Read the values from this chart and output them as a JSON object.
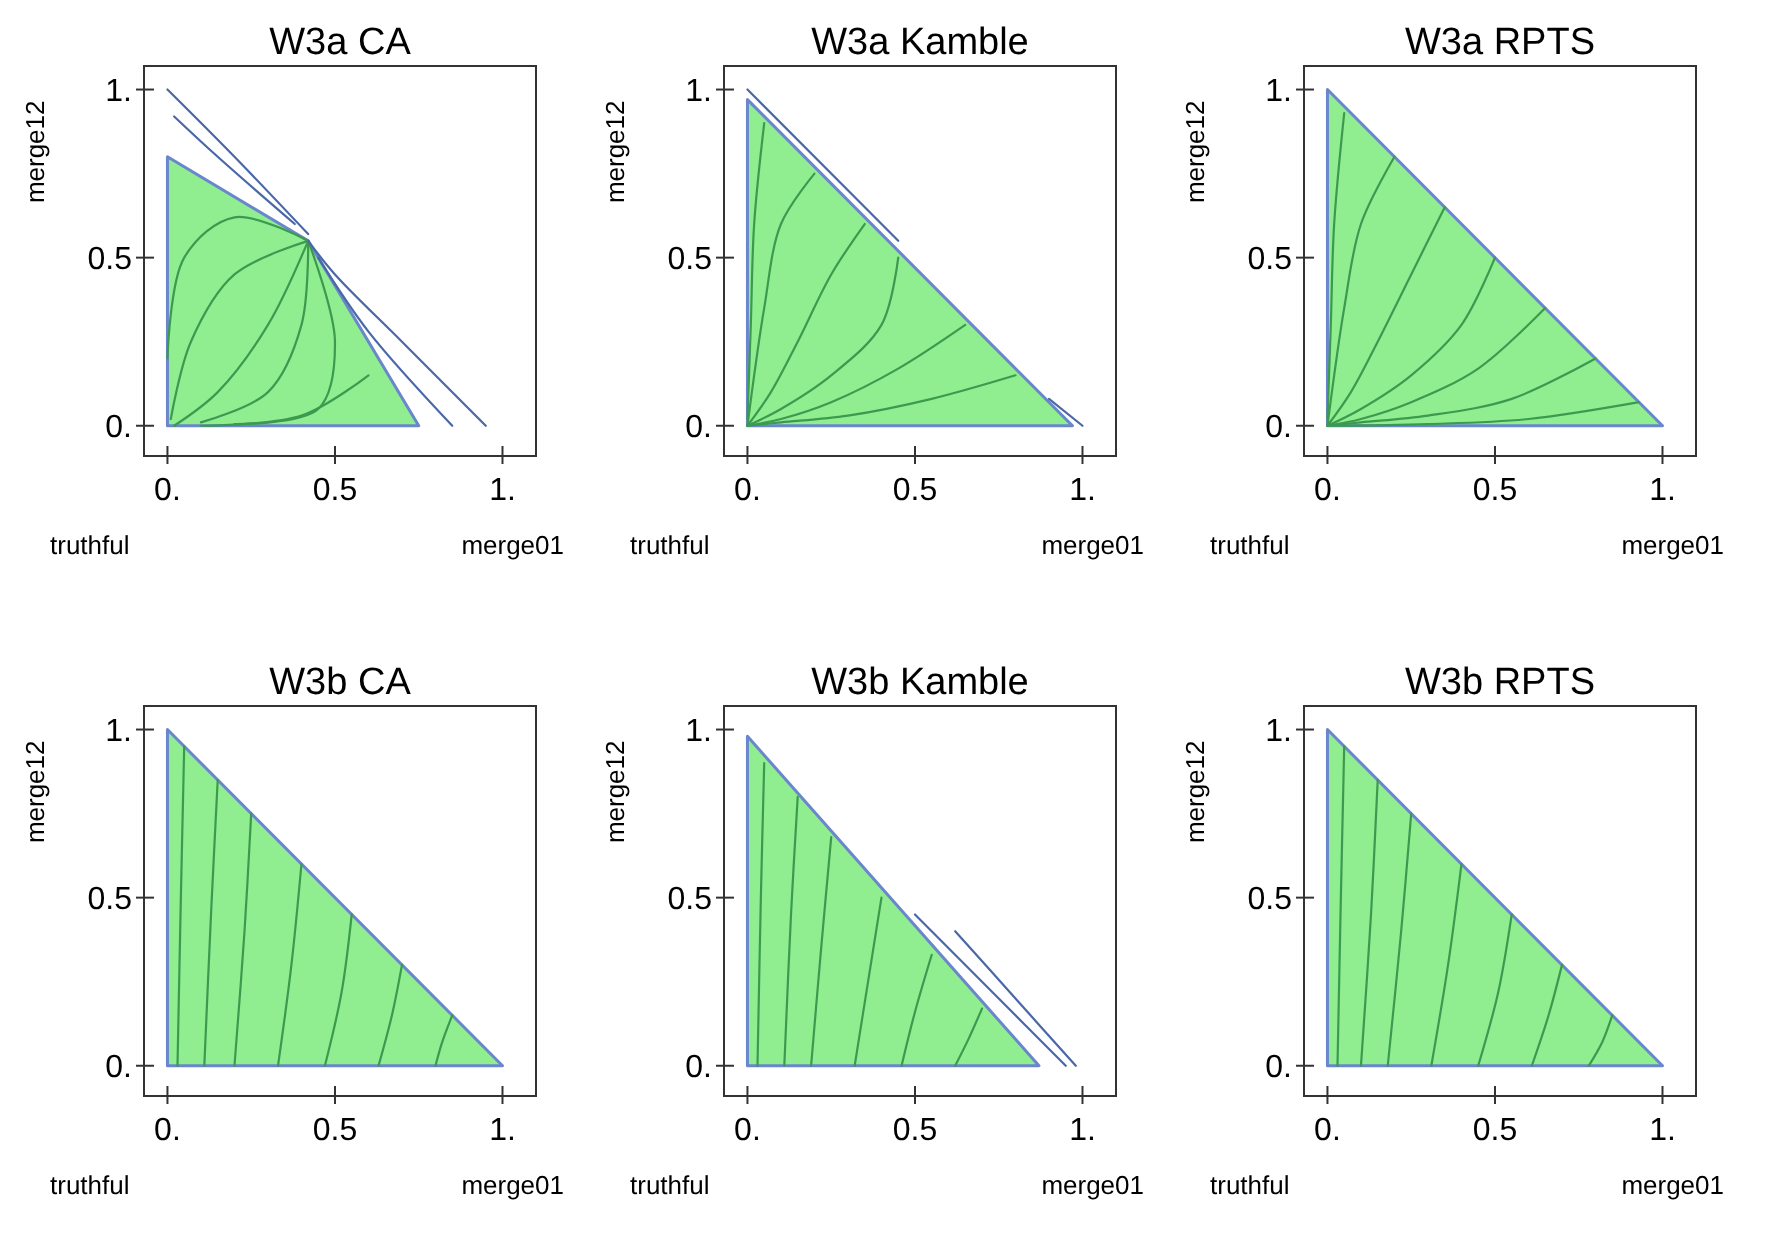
{
  "chart_data": [
    {
      "type": "area",
      "title": "W3a CA",
      "xlabel": "merge01",
      "ylabel": "merge12",
      "annotations": [
        "truthful"
      ],
      "xlim": [
        -0.07,
        1.1
      ],
      "ylim": [
        -0.09,
        1.07
      ],
      "xticks": [
        {
          "value": 0,
          "label": "0."
        },
        {
          "value": 0.5,
          "label": "0.5"
        },
        {
          "value": 1,
          "label": "1."
        }
      ],
      "yticks": [
        {
          "value": 0,
          "label": "0."
        },
        {
          "value": 0.5,
          "label": "0.5"
        },
        {
          "value": 1,
          "label": "1."
        }
      ],
      "series": [
        {
          "type": "area",
          "color": "#90ee90",
          "x": [
            0,
            0.42,
            0.75
          ],
          "values": [
            0.8,
            0.55,
            0
          ]
        },
        {
          "type": "line",
          "color": "#3c9a50",
          "x": [
            0.42,
            0.2,
            0.05,
            0
          ],
          "values": [
            0.55,
            0.62,
            0.5,
            0.2
          ]
        },
        {
          "type": "line",
          "color": "#3c9a50",
          "x": [
            0.42,
            0.2,
            0.07,
            0.01
          ],
          "values": [
            0.55,
            0.45,
            0.25,
            0.02
          ]
        },
        {
          "type": "line",
          "color": "#3c9a50",
          "x": [
            0.42,
            0.3,
            0.15,
            0.02
          ],
          "values": [
            0.55,
            0.3,
            0.1,
            0
          ]
        },
        {
          "type": "line",
          "color": "#3c9a50",
          "x": [
            0.42,
            0.4,
            0.3,
            0.1
          ],
          "values": [
            0.55,
            0.3,
            0.1,
            0.01
          ]
        },
        {
          "type": "line",
          "color": "#3c9a50",
          "x": [
            0.42,
            0.5,
            0.45,
            0.2
          ],
          "values": [
            0.55,
            0.25,
            0.05,
            0.005
          ]
        },
        {
          "type": "line",
          "color": "#3c9a50",
          "x": [
            0.6,
            0.4,
            0.1
          ],
          "values": [
            0.15,
            0.03,
            0
          ]
        },
        {
          "type": "line",
          "color": "#4a68a8",
          "x": [
            0.95,
            0.7,
            0.5,
            0.42
          ],
          "values": [
            0,
            0.25,
            0.45,
            0.55
          ]
        },
        {
          "type": "line",
          "color": "#4a68a8",
          "x": [
            0.85,
            0.6,
            0.45
          ],
          "values": [
            0,
            0.28,
            0.5
          ]
        },
        {
          "type": "line",
          "color": "#4a68a8",
          "x": [
            0.42,
            0.2,
            0
          ],
          "values": [
            0.57,
            0.8,
            1
          ]
        },
        {
          "type": "line",
          "color": "#4a68a8",
          "x": [
            0.38,
            0.15,
            0.02
          ],
          "values": [
            0.6,
            0.8,
            0.92
          ]
        }
      ]
    },
    {
      "type": "area",
      "title": "W3a Kamble",
      "xlabel": "merge01",
      "ylabel": "merge12",
      "annotations": [
        "truthful"
      ],
      "xlim": [
        -0.07,
        1.1
      ],
      "ylim": [
        -0.09,
        1.07
      ],
      "xticks": [
        {
          "value": 0,
          "label": "0."
        },
        {
          "value": 0.5,
          "label": "0.5"
        },
        {
          "value": 1,
          "label": "1."
        }
      ],
      "yticks": [
        {
          "value": 0,
          "label": "0."
        },
        {
          "value": 0.5,
          "label": "0.5"
        },
        {
          "value": 1,
          "label": "1."
        }
      ],
      "series": [
        {
          "type": "area",
          "color": "#90ee90",
          "x": [
            0,
            0.97
          ],
          "values": [
            0.97,
            0
          ]
        },
        {
          "type": "line",
          "color": "#3c9a50",
          "x": [
            0.05,
            0.02,
            0.01,
            0
          ],
          "values": [
            0.9,
            0.6,
            0.3,
            0.02
          ]
        },
        {
          "type": "line",
          "color": "#3c9a50",
          "x": [
            0.2,
            0.1,
            0.05,
            0.02,
            0
          ],
          "values": [
            0.75,
            0.6,
            0.35,
            0.15,
            0
          ]
        },
        {
          "type": "line",
          "color": "#3c9a50",
          "x": [
            0.35,
            0.25,
            0.15,
            0.07,
            0
          ],
          "values": [
            0.6,
            0.45,
            0.25,
            0.1,
            0
          ]
        },
        {
          "type": "line",
          "color": "#3c9a50",
          "x": [
            0.45,
            0.4,
            0.25,
            0.1,
            0
          ],
          "values": [
            0.5,
            0.3,
            0.15,
            0.05,
            0
          ]
        },
        {
          "type": "line",
          "color": "#3c9a50",
          "x": [
            0.65,
            0.45,
            0.25,
            0.1,
            0
          ],
          "values": [
            0.3,
            0.17,
            0.07,
            0.02,
            0
          ]
        },
        {
          "type": "line",
          "color": "#3c9a50",
          "x": [
            0.8,
            0.55,
            0.3,
            0.1,
            0
          ],
          "values": [
            0.15,
            0.08,
            0.03,
            0.01,
            0
          ]
        },
        {
          "type": "line",
          "color": "#4a68a8",
          "x": [
            0,
            0.45
          ],
          "values": [
            1,
            0.55
          ]
        },
        {
          "type": "line",
          "color": "#4a68a8",
          "x": [
            0.9,
            1
          ],
          "values": [
            0.08,
            0
          ]
        }
      ]
    },
    {
      "type": "area",
      "title": "W3a RPTS",
      "xlabel": "merge01",
      "ylabel": "merge12",
      "annotations": [
        "truthful"
      ],
      "xlim": [
        -0.07,
        1.1
      ],
      "ylim": [
        -0.09,
        1.07
      ],
      "xticks": [
        {
          "value": 0,
          "label": "0."
        },
        {
          "value": 0.5,
          "label": "0.5"
        },
        {
          "value": 1,
          "label": "1."
        }
      ],
      "yticks": [
        {
          "value": 0,
          "label": "0."
        },
        {
          "value": 0.5,
          "label": "0.5"
        },
        {
          "value": 1,
          "label": "1."
        }
      ],
      "series": [
        {
          "type": "area",
          "color": "#90ee90",
          "x": [
            0,
            1
          ],
          "values": [
            1,
            0
          ]
        },
        {
          "type": "line",
          "color": "#3c9a50",
          "x": [
            0.05,
            0.02,
            0.01,
            0
          ],
          "values": [
            0.93,
            0.6,
            0.3,
            0.02
          ]
        },
        {
          "type": "line",
          "color": "#3c9a50",
          "x": [
            0.2,
            0.1,
            0.05,
            0.02,
            0
          ],
          "values": [
            0.8,
            0.6,
            0.35,
            0.15,
            0
          ]
        },
        {
          "type": "line",
          "color": "#3c9a50",
          "x": [
            0.35,
            0.25,
            0.15,
            0.07,
            0
          ],
          "values": [
            0.65,
            0.45,
            0.25,
            0.1,
            0
          ]
        },
        {
          "type": "line",
          "color": "#3c9a50",
          "x": [
            0.5,
            0.4,
            0.25,
            0.1,
            0
          ],
          "values": [
            0.5,
            0.3,
            0.15,
            0.05,
            0
          ]
        },
        {
          "type": "line",
          "color": "#3c9a50",
          "x": [
            0.65,
            0.45,
            0.25,
            0.1,
            0
          ],
          "values": [
            0.35,
            0.17,
            0.07,
            0.02,
            0
          ]
        },
        {
          "type": "line",
          "color": "#3c9a50",
          "x": [
            0.8,
            0.55,
            0.3,
            0.1,
            0
          ],
          "values": [
            0.2,
            0.08,
            0.03,
            0.01,
            0
          ]
        },
        {
          "type": "line",
          "color": "#3c9a50",
          "x": [
            0.93,
            0.6,
            0.3,
            0
          ],
          "values": [
            0.07,
            0.02,
            0.005,
            0
          ]
        }
      ]
    },
    {
      "type": "area",
      "title": "W3b CA",
      "xlabel": "merge01",
      "ylabel": "merge12",
      "annotations": [
        "truthful"
      ],
      "xlim": [
        -0.07,
        1.1
      ],
      "ylim": [
        -0.09,
        1.07
      ],
      "xticks": [
        {
          "value": 0,
          "label": "0."
        },
        {
          "value": 0.5,
          "label": "0.5"
        },
        {
          "value": 1,
          "label": "1."
        }
      ],
      "yticks": [
        {
          "value": 0,
          "label": "0."
        },
        {
          "value": 0.5,
          "label": "0.5"
        },
        {
          "value": 1,
          "label": "1."
        }
      ],
      "series": [
        {
          "type": "area",
          "color": "#90ee90",
          "x": [
            0,
            1
          ],
          "values": [
            1,
            0
          ]
        },
        {
          "type": "line",
          "color": "#3c9a50",
          "x": [
            0.05,
            0.04,
            0.03
          ],
          "values": [
            0.95,
            0.5,
            0
          ]
        },
        {
          "type": "line",
          "color": "#3c9a50",
          "x": [
            0.15,
            0.13,
            0.11
          ],
          "values": [
            0.85,
            0.45,
            0
          ]
        },
        {
          "type": "line",
          "color": "#3c9a50",
          "x": [
            0.25,
            0.23,
            0.2
          ],
          "values": [
            0.75,
            0.4,
            0
          ]
        },
        {
          "type": "line",
          "color": "#3c9a50",
          "x": [
            0.4,
            0.37,
            0.33
          ],
          "values": [
            0.6,
            0.3,
            0
          ]
        },
        {
          "type": "line",
          "color": "#3c9a50",
          "x": [
            0.55,
            0.52,
            0.47
          ],
          "values": [
            0.45,
            0.22,
            0
          ]
        },
        {
          "type": "line",
          "color": "#3c9a50",
          "x": [
            0.7,
            0.67,
            0.63
          ],
          "values": [
            0.3,
            0.15,
            0
          ]
        },
        {
          "type": "line",
          "color": "#3c9a50",
          "x": [
            0.85,
            0.82,
            0.8
          ],
          "values": [
            0.15,
            0.07,
            0
          ]
        }
      ]
    },
    {
      "type": "area",
      "title": "W3b Kamble",
      "xlabel": "merge01",
      "ylabel": "merge12",
      "annotations": [
        "truthful"
      ],
      "xlim": [
        -0.07,
        1.1
      ],
      "ylim": [
        -0.09,
        1.07
      ],
      "xticks": [
        {
          "value": 0,
          "label": "0."
        },
        {
          "value": 0.5,
          "label": "0.5"
        },
        {
          "value": 1,
          "label": "1."
        }
      ],
      "yticks": [
        {
          "value": 0,
          "label": "0."
        },
        {
          "value": 0.5,
          "label": "0.5"
        },
        {
          "value": 1,
          "label": "1."
        }
      ],
      "series": [
        {
          "type": "area",
          "color": "#90ee90",
          "x": [
            0,
            0.87
          ],
          "values": [
            0.98,
            0
          ]
        },
        {
          "type": "line",
          "color": "#3c9a50",
          "x": [
            0.05,
            0.04,
            0.03
          ],
          "values": [
            0.9,
            0.5,
            0
          ]
        },
        {
          "type": "line",
          "color": "#3c9a50",
          "x": [
            0.15,
            0.13,
            0.11
          ],
          "values": [
            0.8,
            0.45,
            0
          ]
        },
        {
          "type": "line",
          "color": "#3c9a50",
          "x": [
            0.25,
            0.22,
            0.19
          ],
          "values": [
            0.68,
            0.35,
            0
          ]
        },
        {
          "type": "line",
          "color": "#3c9a50",
          "x": [
            0.4,
            0.36,
            0.32
          ],
          "values": [
            0.5,
            0.25,
            0
          ]
        },
        {
          "type": "line",
          "color": "#3c9a50",
          "x": [
            0.55,
            0.5,
            0.46
          ],
          "values": [
            0.33,
            0.16,
            0
          ]
        },
        {
          "type": "line",
          "color": "#3c9a50",
          "x": [
            0.7,
            0.66,
            0.62
          ],
          "values": [
            0.17,
            0.08,
            0
          ]
        },
        {
          "type": "line",
          "color": "#4a68a8",
          "x": [
            0.5,
            0.75,
            0.95
          ],
          "values": [
            0.45,
            0.2,
            0
          ]
        },
        {
          "type": "line",
          "color": "#4a68a8",
          "x": [
            0.62,
            0.8,
            0.98
          ],
          "values": [
            0.4,
            0.2,
            0
          ]
        }
      ]
    },
    {
      "type": "area",
      "title": "W3b RPTS",
      "xlabel": "merge01",
      "ylabel": "merge12",
      "annotations": [
        "truthful"
      ],
      "xlim": [
        -0.07,
        1.1
      ],
      "ylim": [
        -0.09,
        1.07
      ],
      "xticks": [
        {
          "value": 0,
          "label": "0."
        },
        {
          "value": 0.5,
          "label": "0.5"
        },
        {
          "value": 1,
          "label": "1."
        }
      ],
      "yticks": [
        {
          "value": 0,
          "label": "0."
        },
        {
          "value": 0.5,
          "label": "0.5"
        },
        {
          "value": 1,
          "label": "1."
        }
      ],
      "series": [
        {
          "type": "area",
          "color": "#90ee90",
          "x": [
            0,
            1
          ],
          "values": [
            1,
            0
          ]
        },
        {
          "type": "line",
          "color": "#3c9a50",
          "x": [
            0.05,
            0.04,
            0.03
          ],
          "values": [
            0.95,
            0.5,
            0
          ]
        },
        {
          "type": "line",
          "color": "#3c9a50",
          "x": [
            0.15,
            0.13,
            0.1
          ],
          "values": [
            0.85,
            0.45,
            0
          ]
        },
        {
          "type": "line",
          "color": "#3c9a50",
          "x": [
            0.25,
            0.22,
            0.18
          ],
          "values": [
            0.75,
            0.4,
            0
          ]
        },
        {
          "type": "line",
          "color": "#3c9a50",
          "x": [
            0.4,
            0.36,
            0.31
          ],
          "values": [
            0.6,
            0.3,
            0
          ]
        },
        {
          "type": "line",
          "color": "#3c9a50",
          "x": [
            0.55,
            0.51,
            0.45
          ],
          "values": [
            0.45,
            0.22,
            0
          ]
        },
        {
          "type": "line",
          "color": "#3c9a50",
          "x": [
            0.7,
            0.66,
            0.61
          ],
          "values": [
            0.3,
            0.15,
            0
          ]
        },
        {
          "type": "line",
          "color": "#3c9a50",
          "x": [
            0.85,
            0.82,
            0.78
          ],
          "values": [
            0.15,
            0.07,
            0
          ]
        }
      ]
    }
  ]
}
